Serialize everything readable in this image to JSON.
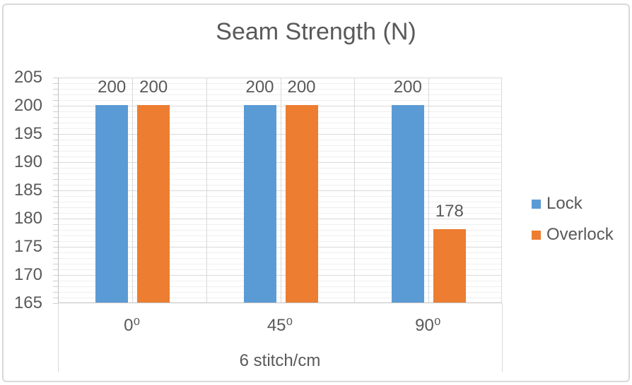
{
  "frame": {
    "background": "#FFFFFF",
    "border_color": "#D9D9D9"
  },
  "chart_data": {
    "type": "bar",
    "title": "Seam Strength (N)",
    "categories": [
      "0⁰",
      "45⁰",
      "90⁰"
    ],
    "series": [
      {
        "name": "Lock",
        "color": "#5B9BD5",
        "values": [
          200,
          200,
          200
        ]
      },
      {
        "name": "Overlock",
        "color": "#ED7D31",
        "values": [
          200,
          200,
          178
        ]
      }
    ],
    "xlabel": "6 stitch/cm",
    "ylabel": "",
    "ylim": [
      165,
      205
    ],
    "y_major_unit": 5,
    "y_minor_unit": 1,
    "yticks": [
      "205",
      "200",
      "195",
      "190",
      "185",
      "180",
      "175",
      "170",
      "165"
    ],
    "grid": {
      "horizontal_major": true,
      "horizontal_minor": true,
      "vertical_half_category": true
    },
    "legend_position": "right",
    "data_labels": "outside-end",
    "styles": {
      "text_color": "#595959",
      "major_gridline_color": "#D9D9D9",
      "minor_gridline_color": "#EFEFEF",
      "axis_line_color": "#BFBFBF"
    }
  }
}
